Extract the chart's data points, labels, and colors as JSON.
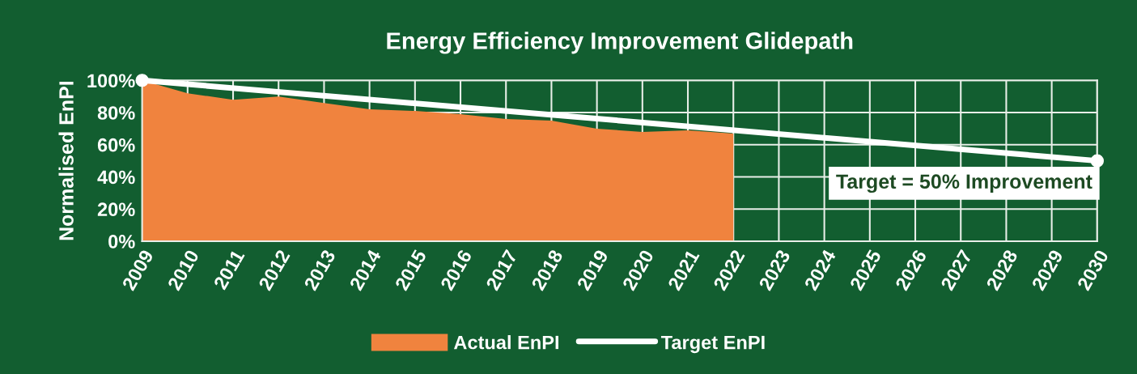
{
  "chart_data": {
    "type": "area",
    "title": "Energy Efficiency Improvement Glidepath",
    "ylabel": "Normalised EnPI",
    "x": [
      2009,
      2010,
      2011,
      2012,
      2013,
      2014,
      2015,
      2016,
      2017,
      2018,
      2019,
      2020,
      2021,
      2022
    ],
    "series": [
      {
        "name": "Actual EnPI",
        "color": "#f0833e",
        "values": [
          100,
          92,
          88,
          90,
          86,
          82,
          81,
          79,
          76,
          75,
          70,
          68,
          69,
          67
        ]
      },
      {
        "name": "Target EnPI",
        "type": "line",
        "color": "#ffffff",
        "x": [
          2009,
          2030
        ],
        "values": [
          100,
          50
        ],
        "marker": "circle"
      }
    ],
    "xlim": [
      2009,
      2030
    ],
    "xticks": [
      2009,
      2010,
      2011,
      2012,
      2013,
      2014,
      2015,
      2016,
      2017,
      2018,
      2019,
      2020,
      2021,
      2022,
      2023,
      2024,
      2025,
      2026,
      2027,
      2028,
      2029,
      2030
    ],
    "ylim": [
      0,
      100
    ],
    "yticks": [
      {
        "value": 0,
        "label": "0%"
      },
      {
        "value": 20,
        "label": "20%"
      },
      {
        "value": 40,
        "label": "40%"
      },
      {
        "value": 60,
        "label": "60%"
      },
      {
        "value": 80,
        "label": "80%"
      },
      {
        "value": 100,
        "label": "100%"
      }
    ],
    "grid": true,
    "legend": "bottom",
    "annotations": [
      "Target = 50% Improvement"
    ]
  }
}
